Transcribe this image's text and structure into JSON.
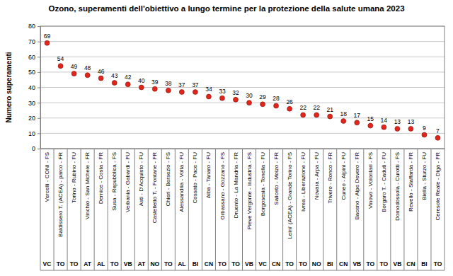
{
  "chart_data": {
    "type": "scatter",
    "title": "Ozono, superamenti dell'obiettivo a lungo termine per la protezione della salute umana 2023",
    "y_label": "Numero superamenti",
    "categories": [
      "Vercelli - CONI - FS",
      "Baldissero T. (ACEA) - parco - FR",
      "Torino - Rubino - FU",
      "Vinchio - San Michele - FR",
      "Dernice - Costa - FR",
      "Susa - Repubblica - FS",
      "Verbania - Gabardi - FU",
      "Asti - D'Acquisto - FU",
      "Castelletto T. - Fontane - FR",
      "Chieri - Bersezio - FS",
      "Alessandria - Volta - FU",
      "Cossato - Pace - FU",
      "Alba - Tanaro - FU",
      "Orbassano - Gozzano - FS",
      "Druento - La Mandria - FR",
      "Pieve Vergonte - Industria - FS",
      "Borgosesia - Tonella - FU",
      "Saliceto - Moizo - FR",
      "Leini' (ACEA) - Grande Torino - FS",
      "Ivrea - Liberazione - FU",
      "Novara - Arpa - FU",
      "Trivero - Ronco - FR",
      "Cuneo - Alpini - FU",
      "Baceno - Alpe Devero - FR",
      "Vinovo - Volontari - FS",
      "Borgaro T. - Caduti - FU",
      "Domodossola - Curotti - FS",
      "Revello - Staffarda - FR",
      "Biella - Sturzo - FU",
      "Ceresole Reale - Diga - FR"
    ],
    "category_groups": [
      "VC",
      "TO",
      "TO",
      "AT",
      "AL",
      "TO",
      "VB",
      "AT",
      "NO",
      "TO",
      "AL",
      "BI",
      "CN",
      "TO",
      "TO",
      "VB",
      "VC",
      "CN",
      "TO",
      "TO",
      "NO",
      "BI",
      "CN",
      "VB",
      "TO",
      "TO",
      "VB",
      "CN",
      "BI",
      "TO"
    ],
    "values": [
      69,
      54,
      49,
      48,
      46,
      43,
      42,
      40,
      39,
      38,
      37,
      37,
      34,
      33,
      32,
      30,
      29,
      28,
      26,
      22,
      22,
      21,
      18,
      17,
      15,
      14,
      13,
      13,
      9,
      7
    ],
    "color": "#e3241b",
    "marker": "circle",
    "data_labels": true,
    "grid": true,
    "ylim": [
      0,
      80
    ],
    "yticks": [
      0,
      10,
      20,
      30,
      40,
      50,
      60,
      70,
      80
    ]
  }
}
